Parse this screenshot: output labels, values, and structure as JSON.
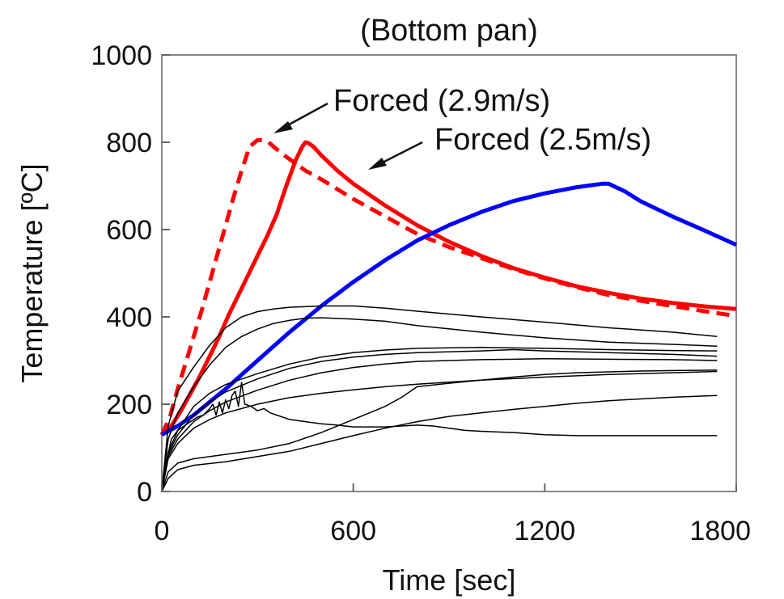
{
  "chart_data": {
    "type": "line",
    "title": "(Bottom pan)",
    "xlabel": "Time [sec]",
    "ylabel": "Temperature [ºC]",
    "xlim": [
      0,
      1800
    ],
    "ylim": [
      0,
      1000
    ],
    "xticks": [
      0,
      600,
      1200,
      1800
    ],
    "yticks": [
      0,
      200,
      400,
      600,
      800,
      1000
    ],
    "xtick_labels": [
      "0",
      "600",
      "1200",
      "1800"
    ],
    "ytick_labels": [
      "0",
      "200",
      "400",
      "600",
      "800",
      "1000"
    ],
    "grid": false,
    "legend": "none",
    "annotations": [
      {
        "text": "Forced (2.9m/s)",
        "points_to": [
          340,
          800
        ]
      },
      {
        "text": "Forced (2.5m/s)",
        "points_to": [
          645,
          730
        ]
      }
    ],
    "series": [
      {
        "color": "#ff0000",
        "style": "solid",
        "width": 5,
        "x": [
          0,
          30,
          60,
          90,
          120,
          150,
          180,
          210,
          240,
          270,
          300,
          330,
          360,
          390,
          420,
          440,
          450,
          460,
          475,
          500,
          550,
          600,
          700,
          800,
          900,
          1000,
          1100,
          1200,
          1300,
          1400,
          1500,
          1600,
          1700,
          1800
        ],
        "y": [
          130,
          150,
          185,
          225,
          265,
          310,
          355,
          405,
          450,
          495,
          540,
          585,
          635,
          700,
          760,
          790,
          800,
          798,
          790,
          770,
          735,
          705,
          655,
          610,
          572,
          540,
          512,
          490,
          470,
          455,
          442,
          432,
          424,
          418
        ]
      },
      {
        "color": "#ff0000",
        "style": "dashed",
        "width": 5,
        "x": [
          0,
          25,
          50,
          75,
          100,
          125,
          150,
          175,
          200,
          225,
          250,
          275,
          300,
          320,
          335,
          350,
          380,
          450,
          500,
          600,
          700,
          800,
          900,
          1000,
          1100,
          1200,
          1300,
          1400,
          1500,
          1600,
          1700,
          1800
        ],
        "y": [
          130,
          170,
          235,
          295,
          355,
          415,
          480,
          545,
          610,
          675,
          735,
          790,
          805,
          805,
          800,
          790,
          772,
          735,
          715,
          670,
          630,
          590,
          560,
          535,
          510,
          488,
          468,
          450,
          437,
          425,
          413,
          402
        ]
      },
      {
        "color": "#0000ff",
        "style": "solid",
        "width": 5,
        "x": [
          0,
          50,
          100,
          200,
          300,
          400,
          500,
          600,
          700,
          800,
          900,
          1000,
          1100,
          1200,
          1300,
          1380,
          1400,
          1450,
          1500,
          1600,
          1700,
          1800
        ],
        "y": [
          130,
          150,
          175,
          235,
          300,
          365,
          425,
          480,
          530,
          575,
          610,
          640,
          665,
          683,
          697,
          705,
          705,
          688,
          665,
          630,
          598,
          565
        ]
      },
      {
        "color": "#000000",
        "style": "solid",
        "width": 1.5,
        "x": [
          0,
          20,
          50,
          100,
          150,
          200,
          250,
          300,
          350,
          400,
          500,
          600,
          700,
          800,
          1000,
          1200,
          1400,
          1600,
          1740
        ],
        "y": [
          0,
          150,
          230,
          285,
          335,
          375,
          400,
          412,
          418,
          422,
          425,
          425,
          420,
          413,
          400,
          388,
          375,
          365,
          355
        ]
      },
      {
        "color": "#000000",
        "style": "solid",
        "width": 1.5,
        "x": [
          0,
          20,
          50,
          100,
          150,
          200,
          250,
          300,
          350,
          400,
          450,
          500,
          600,
          700,
          800,
          1000,
          1200,
          1400,
          1600,
          1740
        ],
        "y": [
          0,
          120,
          180,
          240,
          290,
          330,
          355,
          372,
          385,
          392,
          397,
          398,
          395,
          390,
          380,
          365,
          352,
          342,
          337,
          333
        ]
      },
      {
        "color": "#000000",
        "style": "solid",
        "width": 1.5,
        "x": [
          0,
          20,
          50,
          100,
          150,
          200,
          300,
          400,
          500,
          600,
          700,
          800,
          1000,
          1200,
          1400,
          1600,
          1740
        ],
        "y": [
          0,
          90,
          140,
          195,
          225,
          245,
          270,
          292,
          308,
          318,
          324,
          328,
          330,
          328,
          325,
          323,
          322
        ]
      },
      {
        "color": "#000000",
        "style": "solid",
        "width": 1.5,
        "x": [
          0,
          20,
          50,
          100,
          150,
          200,
          300,
          400,
          500,
          600,
          700,
          800,
          1000,
          1100,
          1200,
          1400,
          1600,
          1740
        ],
        "y": [
          0,
          85,
          130,
          175,
          205,
          228,
          258,
          282,
          298,
          308,
          314,
          318,
          322,
          325,
          322,
          318,
          314,
          310
        ]
      },
      {
        "color": "#000000",
        "style": "solid",
        "width": 1.5,
        "x": [
          0,
          20,
          50,
          100,
          150,
          200,
          300,
          400,
          500,
          600,
          700,
          800,
          1000,
          1200,
          1400,
          1600,
          1740
        ],
        "y": [
          0,
          80,
          120,
          160,
          185,
          205,
          232,
          255,
          272,
          284,
          292,
          298,
          302,
          304,
          303,
          302,
          300
        ]
      },
      {
        "color": "#000000",
        "style": "solid",
        "width": 1.5,
        "x": [
          0,
          20,
          50,
          100,
          150,
          200,
          300,
          400,
          500,
          600,
          700,
          800,
          1000,
          1200,
          1400,
          1600,
          1740
        ],
        "y": [
          0,
          75,
          110,
          145,
          165,
          180,
          200,
          215,
          225,
          233,
          240,
          246,
          255,
          262,
          268,
          272,
          275
        ]
      },
      {
        "color": "#000000",
        "style": "solid",
        "width": 1.5,
        "x": [
          0,
          15,
          30,
          50,
          70,
          90,
          110,
          130,
          150,
          160,
          170,
          180,
          190,
          200,
          210,
          220,
          230,
          240,
          250,
          260,
          280,
          300,
          320,
          340,
          360,
          380,
          400,
          450,
          500,
          550,
          600,
          650,
          700,
          750,
          800,
          850,
          900,
          950,
          1000,
          1100,
          1200,
          1300,
          1400,
          1500,
          1600,
          1740
        ],
        "y": [
          0,
          70,
          120,
          140,
          150,
          160,
          170,
          175,
          190,
          200,
          175,
          205,
          180,
          210,
          190,
          220,
          230,
          195,
          250,
          200,
          195,
          185,
          190,
          180,
          175,
          170,
          165,
          160,
          155,
          152,
          148,
          148,
          148,
          150,
          152,
          150,
          145,
          140,
          138,
          135,
          130,
          128,
          128,
          128,
          128,
          128
        ]
      },
      {
        "color": "#000000",
        "style": "solid",
        "width": 1.5,
        "x": [
          0,
          20,
          50,
          100,
          200,
          300,
          400,
          500,
          600,
          700,
          750,
          800,
          900,
          1000,
          1100,
          1200,
          1300,
          1400,
          1500,
          1600,
          1740
        ],
        "y": [
          0,
          45,
          65,
          75,
          85,
          95,
          110,
          135,
          165,
          195,
          215,
          240,
          248,
          255,
          262,
          268,
          272,
          274,
          276,
          277,
          278
        ]
      },
      {
        "color": "#000000",
        "style": "solid",
        "width": 1.5,
        "x": [
          0,
          20,
          50,
          100,
          200,
          300,
          400,
          500,
          600,
          700,
          800,
          900,
          1000,
          1100,
          1200,
          1300,
          1400,
          1500,
          1600,
          1740
        ],
        "y": [
          0,
          30,
          50,
          60,
          68,
          80,
          92,
          110,
          128,
          145,
          160,
          172,
          180,
          188,
          195,
          202,
          208,
          212,
          216,
          220
        ]
      }
    ]
  }
}
